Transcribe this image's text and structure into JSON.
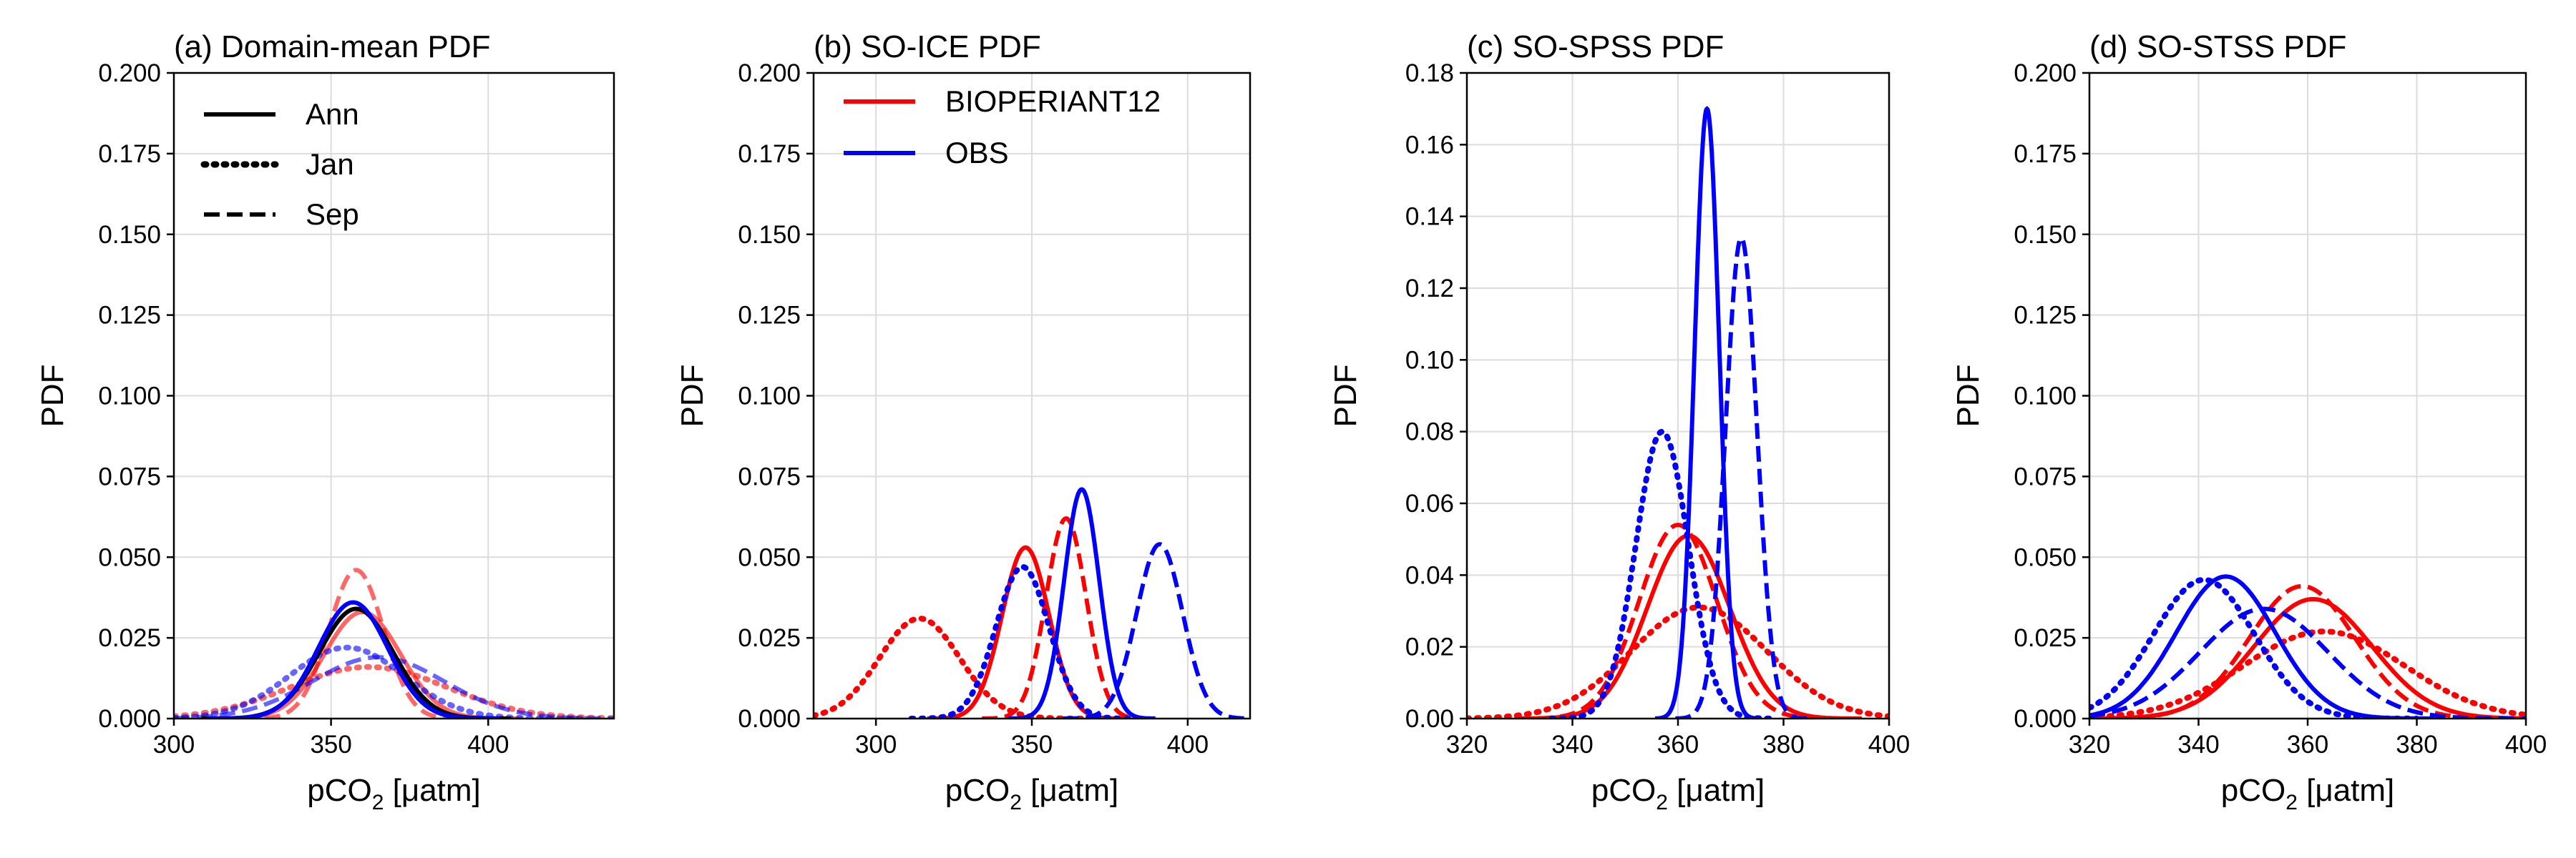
{
  "chart_data": [
    {
      "type": "line",
      "title": "(a) Domain-mean PDF",
      "ylabel": "PDF",
      "xlabel_main": "pCO",
      "xlabel_sub": "2",
      "xlabel_unit": " [μatm]",
      "xlim": [
        300,
        440
      ],
      "ylim": [
        0,
        0.2
      ],
      "xticks": [
        300,
        350,
        400
      ],
      "yticks": [
        "0.000",
        "0.025",
        "0.050",
        "0.075",
        "0.100",
        "0.125",
        "0.150",
        "0.175",
        "0.200"
      ],
      "grid": true,
      "legend": {
        "placement": "top-left",
        "entries": [
          {
            "label": "Ann",
            "style": "solid",
            "color": "#000000"
          },
          {
            "label": "Jan",
            "style": "dotted",
            "color": "#000000"
          },
          {
            "label": "Sep",
            "style": "dashed",
            "color": "#000000"
          }
        ]
      },
      "series": [
        {
          "color": "#ff0000",
          "style": "solid",
          "opacity": 0.6,
          "mean": 360,
          "peak": 0.033
        },
        {
          "color": "#ff0000",
          "style": "dotted",
          "opacity": 0.6,
          "mean": 362,
          "peak": 0.016
        },
        {
          "color": "#ff0000",
          "style": "dashed",
          "opacity": 0.6,
          "mean": 358,
          "peak": 0.046
        },
        {
          "color": "#0000ff",
          "style": "dotted",
          "opacity": 0.6,
          "mean": 355,
          "peak": 0.022
        },
        {
          "color": "#0000ff",
          "style": "dashed",
          "opacity": 0.6,
          "mean": 365,
          "peak": 0.019
        },
        {
          "color": "#000000",
          "style": "solid",
          "opacity": 1.0,
          "mean": 358,
          "peak": 0.034
        },
        {
          "color": "#0000ff",
          "style": "solid",
          "opacity": 1.0,
          "mean": 357,
          "peak": 0.036
        }
      ]
    },
    {
      "type": "line",
      "title": "(b) SO-ICE PDF",
      "ylabel": "PDF",
      "xlabel_main": "pCO",
      "xlabel_sub": "2",
      "xlabel_unit": " [μatm]",
      "xlim": [
        280,
        420
      ],
      "ylim": [
        0,
        0.2
      ],
      "xticks": [
        300,
        350,
        400
      ],
      "yticks": [
        "0.000",
        "0.025",
        "0.050",
        "0.075",
        "0.100",
        "0.125",
        "0.150",
        "0.175",
        "0.200"
      ],
      "grid": true,
      "legend": {
        "placement": "top-left",
        "entries": [
          {
            "label": "BIOPERIANT12",
            "style": "solid",
            "color": "#ff0000"
          },
          {
            "label": "OBS",
            "style": "solid",
            "color": "#0000ff"
          }
        ]
      },
      "series": [
        {
          "name": "BIOPERIANT12",
          "color": "#ff0000",
          "style": "solid",
          "opacity": 1.0,
          "mean": 348,
          "peak": 0.053
        },
        {
          "name": "BIOPERIANT12",
          "color": "#ff0000",
          "style": "dotted",
          "opacity": 1.0,
          "mean": 314,
          "peak": 0.031
        },
        {
          "name": "BIOPERIANT12",
          "color": "#ff0000",
          "style": "dashed",
          "opacity": 1.0,
          "mean": 361,
          "peak": 0.062
        },
        {
          "name": "OBS",
          "color": "#0000ff",
          "style": "solid",
          "opacity": 1.0,
          "mean": 366,
          "peak": 0.071
        },
        {
          "name": "OBS",
          "color": "#0000ff",
          "style": "dotted",
          "opacity": 1.0,
          "mean": 347,
          "peak": 0.047
        },
        {
          "name": "OBS",
          "color": "#0000ff",
          "style": "dashed",
          "opacity": 1.0,
          "mean": 391,
          "peak": 0.054
        }
      ]
    },
    {
      "type": "line",
      "title": "(c) SO-SPSS PDF",
      "ylabel": "PDF",
      "xlabel_main": "pCO",
      "xlabel_sub": "2",
      "xlabel_unit": " [μatm]",
      "xlim": [
        320,
        400
      ],
      "ylim": [
        0,
        0.18
      ],
      "xticks": [
        320,
        340,
        360,
        380,
        400
      ],
      "yticks": [
        "0.00",
        "0.02",
        "0.04",
        "0.06",
        "0.08",
        "0.10",
        "0.12",
        "0.14",
        "0.16",
        "0.18"
      ],
      "grid": true,
      "series": [
        {
          "color": "#ff0000",
          "style": "solid",
          "opacity": 1.0,
          "mean": 362,
          "peak": 0.051
        },
        {
          "color": "#ff0000",
          "style": "dotted",
          "opacity": 1.0,
          "mean": 364,
          "peak": 0.031
        },
        {
          "color": "#ff0000",
          "style": "dashed",
          "opacity": 1.0,
          "mean": 360,
          "peak": 0.054
        },
        {
          "color": "#0000ff",
          "style": "solid",
          "opacity": 1.0,
          "mean": 365.5,
          "peak": 0.17
        },
        {
          "color": "#0000ff",
          "style": "dotted",
          "opacity": 1.0,
          "mean": 357,
          "peak": 0.08
        },
        {
          "color": "#0000ff",
          "style": "dashed",
          "opacity": 1.0,
          "mean": 372,
          "peak": 0.134
        }
      ]
    },
    {
      "type": "line",
      "title": "(d) SO-STSS PDF",
      "ylabel": "PDF",
      "xlabel_main": "pCO",
      "xlabel_sub": "2",
      "xlabel_unit": " [μatm]",
      "xlim": [
        320,
        400
      ],
      "ylim": [
        0,
        0.2
      ],
      "xticks": [
        320,
        340,
        360,
        380,
        400
      ],
      "yticks": [
        "0.000",
        "0.025",
        "0.050",
        "0.075",
        "0.100",
        "0.125",
        "0.150",
        "0.175",
        "0.200"
      ],
      "grid": true,
      "series": [
        {
          "color": "#ff0000",
          "style": "solid",
          "opacity": 1.0,
          "mean": 361,
          "peak": 0.037
        },
        {
          "color": "#ff0000",
          "style": "dotted",
          "opacity": 1.0,
          "mean": 363,
          "peak": 0.027
        },
        {
          "color": "#ff0000",
          "style": "dashed",
          "opacity": 1.0,
          "mean": 359,
          "peak": 0.041
        },
        {
          "color": "#0000ff",
          "style": "solid",
          "opacity": 1.0,
          "mean": 345,
          "peak": 0.044
        },
        {
          "color": "#0000ff",
          "style": "dotted",
          "opacity": 1.0,
          "mean": 341,
          "peak": 0.043
        },
        {
          "color": "#0000ff",
          "style": "dashed",
          "opacity": 1.0,
          "mean": 352,
          "peak": 0.034
        }
      ]
    }
  ]
}
